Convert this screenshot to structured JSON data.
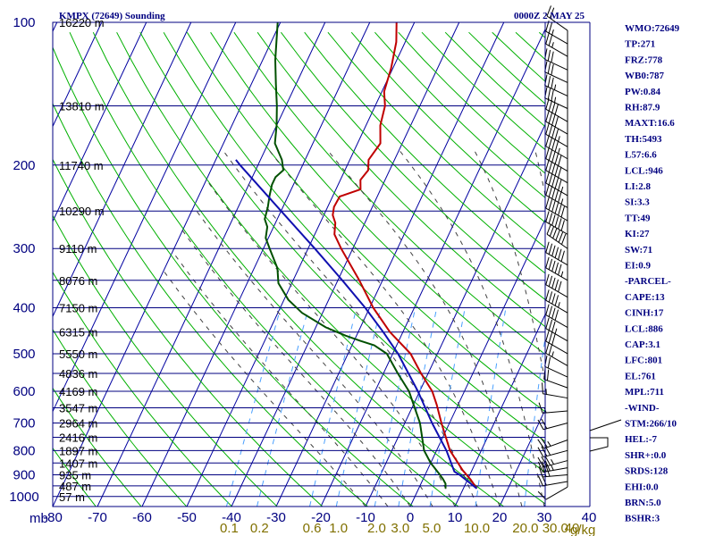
{
  "header": {
    "station_title": "KMPX (72649) Sounding",
    "valid_time": "0000Z  2 MAY 25"
  },
  "pressure_unit_label": "mb",
  "mixing_ratio_unit_label": "g/kg",
  "colors": {
    "frame": "#000080",
    "isotherm": "#0000a0",
    "dry_adiabat": "#00b000",
    "moist_adiabat": "#404040",
    "mixing_ratio": "#4aa0ff",
    "temperature": "#c00000",
    "dewpoint": "#005000",
    "parcel": "#1010b0",
    "wind_barb": "#000000"
  },
  "chart_data": {
    "type": "line",
    "chart_kind": "skew-T log-P sounding",
    "y_axis": {
      "scale": "log",
      "range_mb": [
        100,
        1000
      ],
      "tick_labels": [
        "100",
        "200",
        "300",
        "400",
        "500",
        "600",
        "700",
        "800",
        "900",
        "1000"
      ]
    },
    "x_axis": {
      "range_c": [
        -80,
        40
      ],
      "tick_labels": [
        "-80",
        "-70",
        "-60",
        "-50",
        "-40",
        "-30",
        "-20",
        "-10",
        "0",
        "10",
        "20",
        "30",
        "40"
      ]
    },
    "height_labels": [
      {
        "p": 100,
        "label": "16220 m"
      },
      {
        "p": 150,
        "label": "13810 m"
      },
      {
        "p": 200,
        "label": "11740 m"
      },
      {
        "p": 250,
        "label": "10290 m"
      },
      {
        "p": 300,
        "label": "9110 m"
      },
      {
        "p": 350,
        "label": "8076 m"
      },
      {
        "p": 400,
        "label": "7150 m"
      },
      {
        "p": 450,
        "label": "6315 m"
      },
      {
        "p": 500,
        "label": "5550 m"
      },
      {
        "p": 550,
        "label": "4836 m"
      },
      {
        "p": 600,
        "label": "4169 m"
      },
      {
        "p": 650,
        "label": "3547 m"
      },
      {
        "p": 700,
        "label": "2964 m"
      },
      {
        "p": 750,
        "label": "2416 m"
      },
      {
        "p": 800,
        "label": "1897 m"
      },
      {
        "p": 850,
        "label": "1407 m"
      },
      {
        "p": 900,
        "label": "935 m"
      },
      {
        "p": 950,
        "label": "487 m"
      },
      {
        "p": 1000,
        "label": "57 m"
      }
    ],
    "mixing_ratio_lines": [
      {
        "value": 0.1,
        "label": "0.1"
      },
      {
        "value": 0.2,
        "label": "0.2"
      },
      {
        "value": 0.6,
        "label": "0.6"
      },
      {
        "value": 1.0,
        "label": "1.0"
      },
      {
        "value": 2.0,
        "label": "2.0"
      },
      {
        "value": 3.0,
        "label": "3.0"
      },
      {
        "value": 5.0,
        "label": "5.0"
      },
      {
        "value": 10.0,
        "label": "10.0"
      },
      {
        "value": 20.0,
        "label": "20.0"
      },
      {
        "value": 30.0,
        "label": "30.0"
      },
      {
        "value": 40.0,
        "label": "40"
      }
    ],
    "series": [
      {
        "key": "temperature",
        "points": [
          [
            962,
            13
          ],
          [
            920,
            10.6
          ],
          [
            880,
            7.9
          ],
          [
            800,
            3.0
          ],
          [
            700,
            -1.8
          ],
          [
            640,
            -4.8
          ],
          [
            600,
            -7.2
          ],
          [
            550,
            -11.6
          ],
          [
            500,
            -16.0
          ],
          [
            450,
            -22.9
          ],
          [
            400,
            -29.2
          ],
          [
            350,
            -35.2
          ],
          [
            300,
            -42.6
          ],
          [
            280,
            -45.6
          ],
          [
            265,
            -46.6
          ],
          [
            255,
            -48.0
          ],
          [
            245,
            -48.6
          ],
          [
            233,
            -48.4
          ],
          [
            225,
            -44.5
          ],
          [
            215,
            -45.5
          ],
          [
            205,
            -44.8
          ],
          [
            195,
            -45.8
          ],
          [
            180,
            -44.9
          ],
          [
            165,
            -46.8
          ],
          [
            150,
            -47.8
          ],
          [
            140,
            -49.5
          ],
          [
            125,
            -50.4
          ],
          [
            110,
            -52.0
          ],
          [
            100,
            -54.0
          ]
        ]
      },
      {
        "key": "dewpoint",
        "points": [
          [
            962,
            6.0
          ],
          [
            940,
            5.5
          ],
          [
            920,
            4.5
          ],
          [
            895,
            3.0
          ],
          [
            850,
            0.0
          ],
          [
            800,
            -2.8
          ],
          [
            700,
            -6.6
          ],
          [
            600,
            -12.4
          ],
          [
            550,
            -16.8
          ],
          [
            500,
            -21.3
          ],
          [
            480,
            -25.0
          ],
          [
            470,
            -28.5
          ],
          [
            458,
            -32.4
          ],
          [
            440,
            -37.7
          ],
          [
            410,
            -44.6
          ],
          [
            385,
            -49.0
          ],
          [
            355,
            -53.0
          ],
          [
            330,
            -54.8
          ],
          [
            300,
            -58.6
          ],
          [
            285,
            -60.6
          ],
          [
            270,
            -61.4
          ],
          [
            260,
            -62.8
          ],
          [
            245,
            -63.4
          ],
          [
            232,
            -64.2
          ],
          [
            220,
            -64.8
          ],
          [
            212,
            -64.8
          ],
          [
            205,
            -63.8
          ],
          [
            195,
            -65.2
          ],
          [
            180,
            -68.5
          ],
          [
            165,
            -70.0
          ],
          [
            150,
            -72.0
          ],
          [
            135,
            -74.5
          ],
          [
            120,
            -77.2
          ],
          [
            100,
            -80.6
          ]
        ]
      },
      {
        "key": "parcel",
        "points": [
          [
            962,
            13.0
          ],
          [
            900,
            7.7
          ],
          [
            886,
            6.2
          ],
          [
            800,
            2.2
          ],
          [
            700,
            -3.9
          ],
          [
            600,
            -10.4
          ],
          [
            500,
            -18.8
          ],
          [
            450,
            -24.4
          ],
          [
            400,
            -31.0
          ],
          [
            350,
            -39.0
          ],
          [
            300,
            -48.5
          ],
          [
            250,
            -60.0
          ],
          [
            200,
            -74.0
          ],
          [
            195,
            -75.5
          ]
        ]
      }
    ],
    "wind_barbs": [
      {
        "p": 955,
        "dir": 240,
        "spd": 10
      },
      {
        "p": 930,
        "dir": 260,
        "spd": 20
      },
      {
        "p": 900,
        "dir": 265,
        "spd": 30
      },
      {
        "p": 870,
        "dir": 260,
        "spd": 35
      },
      {
        "p": 840,
        "dir": 255,
        "spd": 35
      },
      {
        "p": 800,
        "dir": 255,
        "spd": 30
      },
      {
        "p": 760,
        "dir": 250,
        "spd": 25
      },
      {
        "p": 700,
        "dir": 255,
        "spd": 20
      },
      {
        "p": 660,
        "dir": 265,
        "spd": 15
      },
      {
        "p": 620,
        "dir": 280,
        "spd": 15
      },
      {
        "p": 590,
        "dir": 290,
        "spd": 20
      },
      {
        "p": 560,
        "dir": 295,
        "spd": 20
      },
      {
        "p": 530,
        "dir": 300,
        "spd": 25
      },
      {
        "p": 500,
        "dir": 300,
        "spd": 30
      },
      {
        "p": 470,
        "dir": 300,
        "spd": 35
      },
      {
        "p": 440,
        "dir": 300,
        "spd": 40
      },
      {
        "p": 410,
        "dir": 300,
        "spd": 45
      },
      {
        "p": 380,
        "dir": 300,
        "spd": 50
      },
      {
        "p": 350,
        "dir": 300,
        "spd": 55
      },
      {
        "p": 325,
        "dir": 300,
        "spd": 60
      },
      {
        "p": 300,
        "dir": 305,
        "spd": 60
      },
      {
        "p": 280,
        "dir": 300,
        "spd": 60
      },
      {
        "p": 262,
        "dir": 300,
        "spd": 60
      },
      {
        "p": 246,
        "dir": 300,
        "spd": 55
      },
      {
        "p": 232,
        "dir": 300,
        "spd": 55
      },
      {
        "p": 218,
        "dir": 300,
        "spd": 50
      },
      {
        "p": 206,
        "dir": 300,
        "spd": 50
      },
      {
        "p": 194,
        "dir": 300,
        "spd": 45
      },
      {
        "p": 183,
        "dir": 300,
        "spd": 45
      },
      {
        "p": 172,
        "dir": 300,
        "spd": 40
      },
      {
        "p": 162,
        "dir": 300,
        "spd": 40
      },
      {
        "p": 152,
        "dir": 295,
        "spd": 35
      },
      {
        "p": 143,
        "dir": 295,
        "spd": 35
      },
      {
        "p": 134,
        "dir": 295,
        "spd": 30
      },
      {
        "p": 126,
        "dir": 295,
        "spd": 30
      },
      {
        "p": 118,
        "dir": 300,
        "spd": 25
      },
      {
        "p": 111,
        "dir": 300,
        "spd": 25
      },
      {
        "p": 104,
        "dir": 305,
        "spd": 20
      }
    ]
  },
  "indices": [
    "WMO:72649",
    "TP:271",
    "FRZ:778",
    "WB0:787",
    "PW:0.84",
    "RH:87.9",
    "MAXT:16.6",
    "TH:5493",
    "L57:6.6",
    "LCL:946",
    "LI:2.8",
    "SI:3.3",
    "TT:49",
    "KI:27",
    "SW:71",
    "EI:0.9",
    "-PARCEL-",
    "CAPE:13",
    "CINH:17",
    "LCL:886",
    "CAP:3.1",
    "LFC:801",
    "EL:761",
    "MPL:711",
    "-WIND-",
    "STM:266/10",
    "HEL:-7",
    "SHR+:0.0",
    "SRDS:128",
    "EHI:0.0",
    "BRN:5.0",
    "BSHR:3"
  ]
}
